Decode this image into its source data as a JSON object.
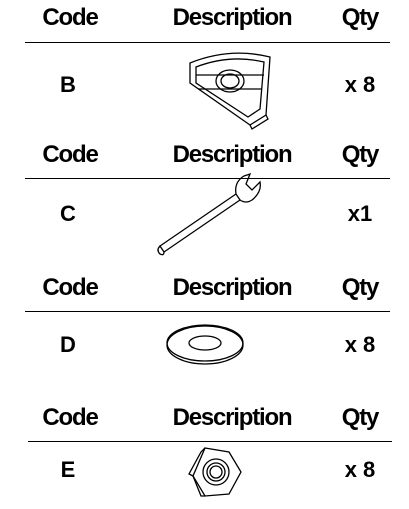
{
  "sections": [
    {
      "header": {
        "code": "Code",
        "description": "Description",
        "qty": "Qty"
      },
      "item": {
        "code": "B",
        "qty": "x 8"
      }
    },
    {
      "header": {
        "code": "Code",
        "description": "Description",
        "qty": "Qty"
      },
      "item": {
        "code": "C",
        "qty": "x1"
      }
    },
    {
      "header": {
        "code": "Code",
        "description": "Description",
        "qty": "Qty"
      },
      "item": {
        "code": "D",
        "qty": "x 8"
      }
    },
    {
      "header": {
        "code": "Code",
        "description": "Description",
        "qty": "Qty"
      },
      "item": {
        "code": "E",
        "qty": "x 8"
      }
    }
  ]
}
